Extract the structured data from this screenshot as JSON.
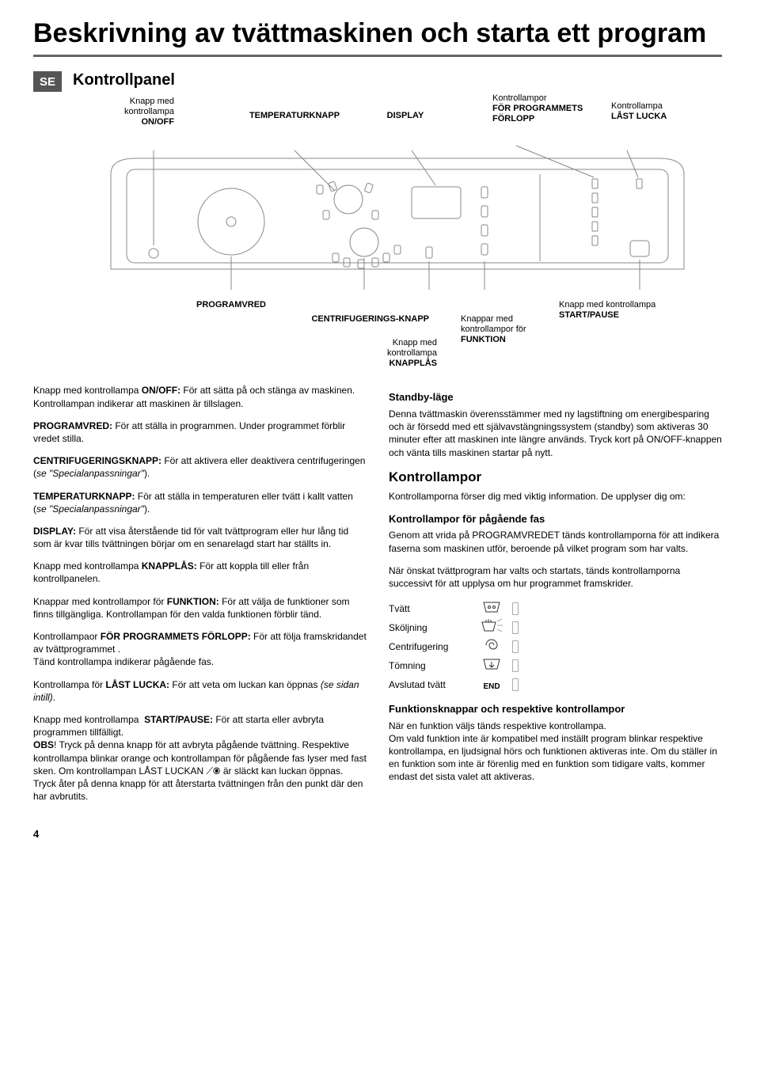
{
  "title": "Beskrivning av tvättmaskinen och starta ett program",
  "lang_badge": "SE",
  "panel_heading": "Kontrollpanel",
  "top_labels": {
    "onoff": {
      "line1": "Knapp med",
      "line2": "kontrollampa",
      "bold": "ON/OFF"
    },
    "temp": {
      "bold": "TEMPERATURKNAPP"
    },
    "display": {
      "bold": "DISPLAY"
    },
    "progress": {
      "line1": "Kontrollampor",
      "bold": "FÖR PROGRAMMETS FÖRLOPP"
    },
    "lock": {
      "line1": "Kontrollampa",
      "bold": "LÅST LUCKA"
    }
  },
  "bottom_labels": {
    "programvred": {
      "bold": "PROGRAMVRED"
    },
    "centrifug": {
      "bold": "CENTRIFUGERINGS-KNAPP"
    },
    "knapplas": {
      "line1": "Knapp med",
      "line2": "kontrollampa",
      "bold": "KNAPPLÅS"
    },
    "funktion": {
      "line1": "Knappar med",
      "line2": "kontrollampor för",
      "bold": "FUNKTION"
    },
    "startpause": {
      "line1": "Knapp med kontrollampa",
      "bold": "START/PAUSE"
    }
  },
  "left_col": [
    {
      "bold": "",
      "lead": "Knapp med kontrollampa <b>ON/OFF:</b> För att sätta på och stänga av maskinen.<br>Kontrollampan indikerar att maskinen är tillslagen."
    },
    {
      "lead": "<b>PROGRAMVRED:</b> För att ställa in programmen. Under programmet förblir vredet stilla."
    },
    {
      "lead": "<b>CENTRIFUGERINGSKNAPP:</b> För att aktivera eller deaktivera centrifugeringen (<i>se \"Specialanpassningar\"</i>)."
    },
    {
      "lead": "<b>TEMPERATURKNAPP:</b> För att ställa in temperaturen eller tvätt i kallt vatten (<i>se \"Specialanpassningar\"</i>)."
    },
    {
      "lead": "<b>DISPLAY:</b> För att visa återstående tid för valt tvättprogram eller hur lång tid som är kvar tills tvättningen börjar om en senarelagd start har ställts in."
    },
    {
      "lead": "Knapp med kontrollampa <b>KNAPPLÅS:</b> För att koppla till eller från kontrollpanelen."
    },
    {
      "lead": "Knappar med kontrollampor för <b>FUNKTION:</b> För att välja de funktioner som finns tillgängliga. Kontrollampan för den valda funktionen förblir tänd."
    },
    {
      "lead": "Kontrollampaor <b>FÖR PROGRAMMETS FÖRLOPP:</b> För att följa framskridandet av tvättprogrammet .<br>Tänd kontrollampa indikerar pågående fas."
    },
    {
      "lead": "Kontrollampa för <b>LÅST LUCKA:</b> För att veta om luckan kan öppnas <i>(se sidan intill)</i>."
    },
    {
      "lead": "Knapp med kontrollampa&nbsp; <b>START/PAUSE:</b> För att starta eller avbryta programmen tillfälligt.<br><b>OBS</b>! Tryck på denna knapp för att avbryta pågående tvättning. Respektive kontrollampa blinkar orange och kontrollampan för pågående fas lyser med fast sken. Om kontrollampan LÅST LUCKAN ⟋⦿ är släckt kan luckan öppnas. Tryck åter på denna knapp för att återstarta tvättningen från den punkt där den har avbrutits."
    }
  ],
  "right_col": {
    "standby_head": "Standby-läge",
    "standby_body": "Denna tvättmaskin överensstämmer med ny lagstiftning om energibesparing och är försedd med ett självavstängningssystem (standby) som aktiveras 30 minuter efter att maskinen inte längre används. Tryck kort på ON/OFF-knappen och vänta tills maskinen startar på nytt.",
    "kontrollampor_head": "Kontrollampor",
    "kontrollampor_body": "Kontrollamporna förser dig med viktig information. De upplyser dig om:",
    "phase_head": "Kontrollampor för pågående fas",
    "phase_body": "Genom att vrida på PROGRAMVREDET tänds kontrollamporna för att indikera faserna som maskinen utför, beroende på vilket program som har valts.",
    "phase_body2": "När önskat tvättprogram har valts och startats, tänds kontrollamporna successivt för att upplysa om hur programmet framskrider.",
    "phases": [
      {
        "label": "Tvätt",
        "icon": "tub"
      },
      {
        "label": "Sköljning",
        "icon": "rinse"
      },
      {
        "label": "Centrifugering",
        "icon": "spiral"
      },
      {
        "label": "Tömning",
        "icon": "drain"
      },
      {
        "label": "Avslutad tvätt",
        "icon": "END"
      }
    ],
    "funk_head": "Funktionsknappar och respektive kontrollampor",
    "funk_body": "När en funktion väljs tänds respektive kontrollampa.<br>Om vald funktion inte är kompatibel med inställt program blinkar respektive kontrollampa, en ljudsignal hörs och funktionen aktiveras inte. Om du ställer in en funktion som inte är förenlig med en funktion som tidigare valts, kommer endast det sista valet att aktiveras."
  },
  "page_number": "4",
  "colors": {
    "rule": "#666666",
    "panel_stroke": "#888888",
    "led_fill": "#d9d9d9"
  }
}
